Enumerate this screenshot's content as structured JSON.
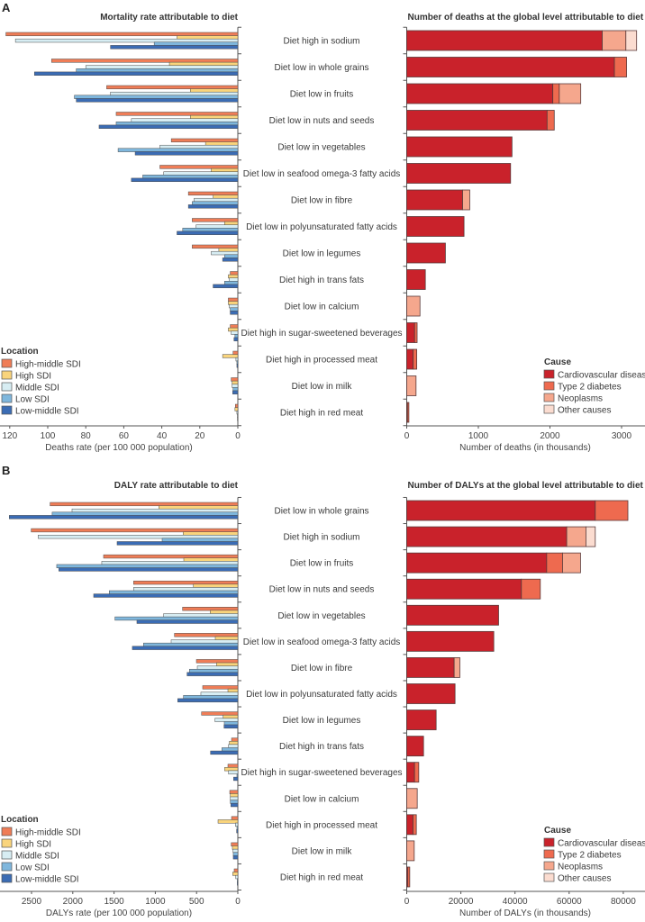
{
  "location_colors": {
    "High-middle SDI": "#ef7d57",
    "High SDI": "#f9d47c",
    "Middle SDI": "#d7edf3",
    "Low SDI": "#7fb7dd",
    "Low-middle SDI": "#3b6cb4"
  },
  "cause_colors": {
    "Cardiovascular diseases": "#c9222b",
    "Type 2 diabetes": "#ee6a4f",
    "Neoplasms": "#f5a78d",
    "Other causes": "#fbdcd0"
  },
  "chart_data": [
    {
      "panel": "A",
      "type": "bar",
      "orientation": "horizontal",
      "x_direction": "reversed",
      "title": "Mortality rate attributable to diet",
      "xlabel": "Deaths rate (per 100 000 population)",
      "xlim": [
        0,
        120
      ],
      "xticks": [
        "120",
        "100",
        "80",
        "60",
        "40",
        "20",
        "0"
      ],
      "legend_title": "Location",
      "legend_placement": "bottom-left",
      "categories": [
        "Diet high in sodium",
        "Diet low in whole grains",
        "Diet low in fruits",
        "Diet low in nuts and seeds",
        "Diet low in vegetables",
        "Diet low in seafood omega-3 fatty acids",
        "Diet low in fibre",
        "Diet low in polyunsaturated fatty acids",
        "Diet low in legumes",
        "Diet high in trans fats",
        "Diet low in calcium",
        "Diet high in sugar-sweetened beverages",
        "Diet high in processed meat",
        "Diet low in milk",
        "Diet high in red meat"
      ],
      "series": [
        {
          "name": "High-middle SDI",
          "values": [
            122,
            98,
            69,
            64,
            35,
            41,
            26,
            24,
            24,
            4,
            5,
            4,
            2.5,
            3.5,
            1.3
          ]
        },
        {
          "name": "High SDI",
          "values": [
            32,
            36,
            25,
            25,
            17,
            14,
            13,
            7,
            10,
            5,
            5,
            5,
            8,
            3,
            1.5
          ]
        },
        {
          "name": "Middle SDI",
          "values": [
            117,
            80,
            67,
            56,
            41,
            39,
            23,
            22,
            14,
            4.5,
            4.5,
            3.5,
            1,
            3,
            0.5
          ]
        },
        {
          "name": "Low SDI",
          "values": [
            44,
            85,
            86,
            64,
            63,
            50,
            24,
            29,
            7,
            7,
            4,
            1.5,
            0.5,
            2.5,
            0.2
          ]
        },
        {
          "name": "Low-middle SDI",
          "values": [
            67,
            107,
            85,
            73,
            54,
            56,
            26,
            32,
            8,
            13,
            4,
            2,
            0.5,
            2.7,
            0.2
          ]
        }
      ]
    },
    {
      "panel": "A",
      "type": "bar",
      "orientation": "horizontal",
      "stacked": true,
      "title": "Number of deaths at the global level attributable to diet",
      "xlabel": "Number of deaths (in thousands)",
      "xlim": [
        0,
        3300
      ],
      "xticks": [
        "0",
        "1000",
        "2000",
        "3000"
      ],
      "legend_title": "Cause",
      "legend_placement": "bottom-right",
      "categories": [
        "Diet high in sodium",
        "Diet low in whole grains",
        "Diet low in fruits",
        "Diet low in nuts and seeds",
        "Diet low in vegetables",
        "Diet low in seafood omega-3 fatty acids",
        "Diet low in fibre",
        "Diet low in polyunsaturated fatty acids",
        "Diet low in legumes",
        "Diet high in trans fats",
        "Diet low in calcium",
        "Diet high in sugar-sweetened beverages",
        "Diet high in processed meat",
        "Diet low in milk",
        "Diet high in red meat"
      ],
      "series": [
        {
          "name": "Cardiovascular diseases",
          "values": [
            2730,
            2900,
            2040,
            1960,
            1470,
            1450,
            780,
            800,
            540,
            260,
            0,
            110,
            90,
            0,
            10
          ]
        },
        {
          "name": "Type 2 diabetes",
          "values": [
            0,
            170,
            90,
            100,
            0,
            0,
            0,
            0,
            0,
            0,
            0,
            35,
            50,
            0,
            20
          ]
        },
        {
          "name": "Neoplasms",
          "values": [
            330,
            0,
            300,
            0,
            0,
            0,
            100,
            0,
            0,
            0,
            185,
            0,
            0,
            130,
            0
          ]
        },
        {
          "name": "Other causes",
          "values": [
            150,
            0,
            0,
            0,
            0,
            0,
            0,
            0,
            0,
            0,
            0,
            0,
            0,
            0,
            0
          ]
        }
      ]
    },
    {
      "panel": "B",
      "type": "bar",
      "orientation": "horizontal",
      "x_direction": "reversed",
      "title": "DALY rate attributable to diet",
      "xlabel": "DALYs rate (per 100 000 population)",
      "xlim": [
        0,
        2800
      ],
      "xticks": [
        "2500",
        "2000",
        "1500",
        "1000",
        "500",
        "0"
      ],
      "legend_title": "Location",
      "legend_placement": "bottom-left",
      "categories": [
        "Diet low in whole grains",
        "Diet high in sodium",
        "Diet low in fruits",
        "Diet low in nuts and seeds",
        "Diet low in vegetables",
        "Diet low in seafood omega-3 fatty acids",
        "Diet low in fibre",
        "Diet low in polyunsaturated fatty acids",
        "Diet low in legumes",
        "Diet high in trans fats",
        "Diet high in sugar-sweetened beverages",
        "Diet low in calcium",
        "Diet high in processed meat",
        "Diet low in milk",
        "Diet high in red meat"
      ],
      "series": [
        {
          "name": "High-middle SDI",
          "values": [
            2275,
            2504,
            1627,
            1263,
            670,
            768,
            502,
            426,
            440,
            76,
            120,
            98,
            76,
            80,
            44
          ]
        },
        {
          "name": "High SDI",
          "values": [
            957,
            662,
            655,
            539,
            335,
            273,
            258,
            120,
            178,
            102,
            160,
            91,
            240,
            66,
            62
          ]
        },
        {
          "name": "Middle SDI",
          "values": [
            2009,
            2420,
            1649,
            1263,
            899,
            808,
            491,
            448,
            277,
            113,
            113,
            91,
            29,
            58,
            25
          ]
        },
        {
          "name": "Low SDI",
          "values": [
            2250,
            917,
            2195,
            1558,
            1489,
            1143,
            586,
            659,
            164,
            193,
            11,
            91,
            11,
            55,
            7
          ]
        },
        {
          "name": "Low-middle SDI",
          "values": [
            2770,
            1463,
            2169,
            1747,
            1223,
            1278,
            615,
            728,
            167,
            331,
            51,
            84,
            15,
            55,
            7
          ]
        }
      ]
    },
    {
      "panel": "B",
      "type": "bar",
      "orientation": "horizontal",
      "stacked": true,
      "title": "Number of DALYs at the global level attributable to diet",
      "xlabel": "Number of DALYs (in thousands)",
      "xlim": [
        0,
        88000
      ],
      "xticks": [
        "0",
        "20000",
        "40000",
        "60000",
        "80000"
      ],
      "legend_title": "Cause",
      "legend_placement": "bottom-right",
      "categories": [
        "Diet low in whole grains",
        "Diet high in sodium",
        "Diet low in fruits",
        "Diet low in nuts and seeds",
        "Diet low in vegetables",
        "Diet low in seafood omega-3 fatty acids",
        "Diet low in fibre",
        "Diet low in polyunsaturated fatty acids",
        "Diet low in legumes",
        "Diet high in trans fats",
        "Diet high in sugar-sweetened beverages",
        "Diet low in calcium",
        "Diet high in processed meat",
        "Diet low in milk",
        "Diet high in red meat"
      ],
      "series": [
        {
          "name": "Cardiovascular diseases",
          "values": [
            69650,
            59100,
            51700,
            42360,
            33940,
            32160,
            17520,
            17850,
            10870,
            6210,
            2880,
            0,
            2330,
            0,
            400
          ]
        },
        {
          "name": "Type 2 diabetes",
          "values": [
            12050,
            0,
            5860,
            6990,
            0,
            0,
            0,
            0,
            0,
            0,
            1560,
            0,
            1220,
            0,
            710
          ]
        },
        {
          "name": "Neoplasms",
          "values": [
            0,
            7100,
            6640,
            0,
            0,
            0,
            2110,
            0,
            0,
            0,
            0,
            3880,
            0,
            2770,
            0
          ]
        },
        {
          "name": "Other causes",
          "values": [
            0,
            3450,
            0,
            0,
            0,
            0,
            0,
            0,
            0,
            0,
            0,
            0,
            0,
            0,
            0
          ]
        }
      ]
    }
  ]
}
